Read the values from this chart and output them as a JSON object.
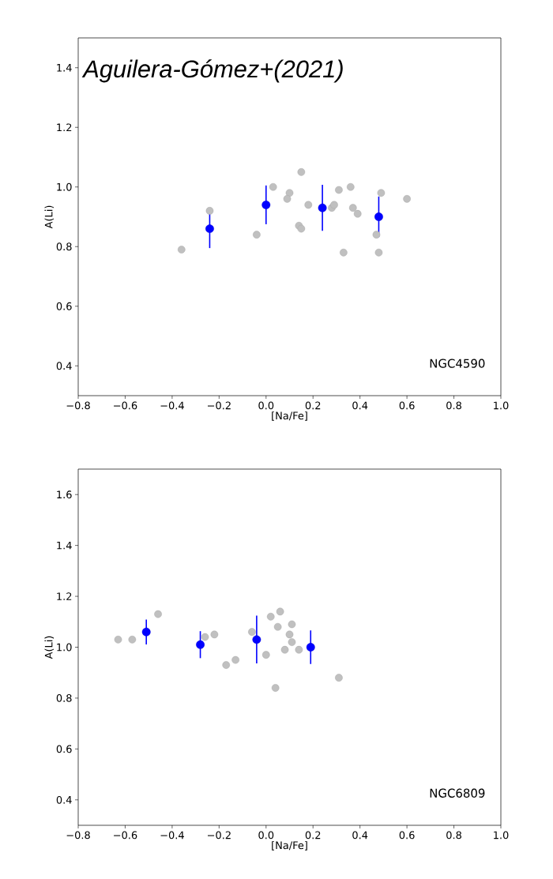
{
  "chart_data": [
    {
      "type": "scatter",
      "title": "Aguilera-Gómez+(2021)",
      "xlabel": "[Na/Fe]",
      "ylabel": "A(Li)",
      "annotations": [
        "NGC4590"
      ],
      "marker": "circle",
      "xlim": [
        -0.8,
        1.0
      ],
      "ylim": [
        0.3,
        1.5
      ],
      "xticks": [
        {
          "value": -0.8,
          "label": "−0.8"
        },
        {
          "value": -0.6,
          "label": "−0.6"
        },
        {
          "value": -0.4,
          "label": "−0.4"
        },
        {
          "value": -0.2,
          "label": "−0.2"
        },
        {
          "value": 0.0,
          "label": "0.0"
        },
        {
          "value": 0.2,
          "label": "0.2"
        },
        {
          "value": 0.4,
          "label": "0.4"
        },
        {
          "value": 0.6,
          "label": "0.6"
        },
        {
          "value": 0.8,
          "label": "0.8"
        },
        {
          "value": 1.0,
          "label": "1.0"
        }
      ],
      "yticks": [
        {
          "value": 0.4,
          "label": "0.4"
        },
        {
          "value": 0.6,
          "label": "0.6"
        },
        {
          "value": 0.8,
          "label": "0.8"
        },
        {
          "value": 1.0,
          "label": "1.0"
        },
        {
          "value": 1.2,
          "label": "1.2"
        },
        {
          "value": 1.4,
          "label": "1.4"
        }
      ],
      "series": [
        {
          "color": "#c0c0c0",
          "x": [
            -0.36,
            -0.24,
            -0.04,
            0.03,
            0.1,
            0.09,
            0.15,
            0.14,
            0.15,
            0.18,
            0.28,
            0.29,
            0.31,
            0.36,
            0.33,
            0.37,
            0.39,
            0.47,
            0.49,
            0.48,
            0.6
          ],
          "values": [
            0.79,
            0.92,
            0.84,
            1.0,
            0.98,
            0.96,
            1.05,
            0.87,
            0.86,
            0.94,
            0.93,
            0.94,
            0.99,
            1.0,
            0.78,
            0.93,
            0.91,
            0.84,
            0.98,
            0.78,
            0.96
          ]
        },
        {
          "color": "#0000ff",
          "x": [
            -0.24,
            0.0,
            0.24,
            0.48
          ],
          "values": [
            0.86,
            0.94,
            0.93,
            0.9
          ],
          "errors": [
            0.065,
            0.065,
            0.077,
            0.068
          ]
        }
      ]
    },
    {
      "type": "scatter",
      "xlabel": "[Na/Fe]",
      "ylabel": "A(Li)",
      "annotations": [
        "NGC6809"
      ],
      "marker": "circle",
      "xlim": [
        -0.8,
        1.0
      ],
      "ylim": [
        0.3,
        1.7
      ],
      "xticks": [
        {
          "value": -0.8,
          "label": "−0.8"
        },
        {
          "value": -0.6,
          "label": "−0.6"
        },
        {
          "value": -0.4,
          "label": "−0.4"
        },
        {
          "value": -0.2,
          "label": "−0.2"
        },
        {
          "value": 0.0,
          "label": "0.0"
        },
        {
          "value": 0.2,
          "label": "0.2"
        },
        {
          "value": 0.4,
          "label": "0.4"
        },
        {
          "value": 0.6,
          "label": "0.6"
        },
        {
          "value": 0.8,
          "label": "0.8"
        },
        {
          "value": 1.0,
          "label": "1.0"
        }
      ],
      "yticks": [
        {
          "value": 0.4,
          "label": "0.4"
        },
        {
          "value": 0.6,
          "label": "0.6"
        },
        {
          "value": 0.8,
          "label": "0.8"
        },
        {
          "value": 1.0,
          "label": "1.0"
        },
        {
          "value": 1.2,
          "label": "1.2"
        },
        {
          "value": 1.4,
          "label": "1.4"
        },
        {
          "value": 1.6,
          "label": "1.6"
        }
      ],
      "series": [
        {
          "color": "#c0c0c0",
          "x": [
            -0.63,
            -0.57,
            -0.46,
            -0.26,
            -0.22,
            -0.17,
            -0.13,
            -0.06,
            0.0,
            0.02,
            0.06,
            0.05,
            0.04,
            0.08,
            0.1,
            0.11,
            0.11,
            0.14,
            0.31
          ],
          "values": [
            1.03,
            1.03,
            1.13,
            1.04,
            1.05,
            0.93,
            0.95,
            1.06,
            0.97,
            1.12,
            1.14,
            1.08,
            0.84,
            0.99,
            1.05,
            1.09,
            1.02,
            0.99,
            0.88
          ]
        },
        {
          "color": "#0000ff",
          "x": [
            -0.51,
            -0.28,
            -0.04,
            0.19
          ],
          "values": [
            1.06,
            1.01,
            1.03,
            1.0
          ],
          "errors": [
            0.049,
            0.053,
            0.094,
            0.066
          ]
        }
      ]
    }
  ]
}
